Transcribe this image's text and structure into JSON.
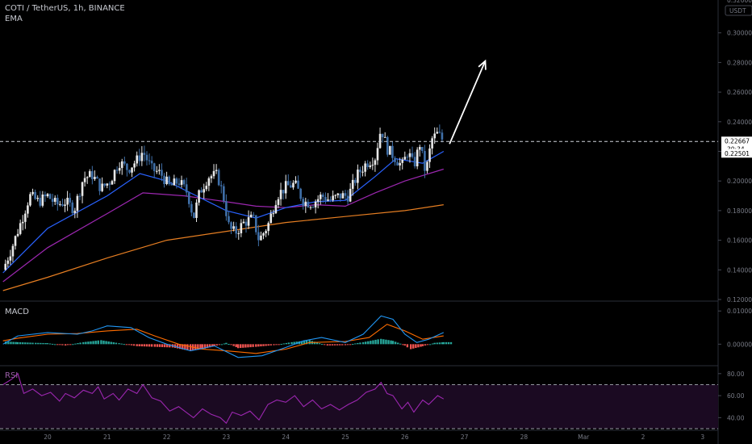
{
  "header": {
    "symbol_line": "COTI / TetherUS, 1h, BINANCE",
    "indicator": "EMA"
  },
  "chart_data": {
    "type": "candlestick",
    "title": "COTI / TetherUS, 1h, BINANCE",
    "currency_label": "USDT",
    "colors": {
      "up": "#e8e8e8",
      "down": "#3f6fa8",
      "ema_fast": "#2962ff",
      "ema_mid": "#9c27b0",
      "ema_slow": "#e67e22",
      "macd": "#2196f3",
      "signal": "#ff6d00",
      "hist_pos": "#26a69a",
      "hist_neg": "#ef5350",
      "rsi": "#9c27b0",
      "rsi_band": "#1b0a22",
      "arrow": "#ffffff"
    },
    "price_axis": {
      "min": 0.12,
      "max": 0.32,
      "ticks": [
        "0.30000",
        "0.28000",
        "0.26000",
        "0.24000",
        "0.22000",
        "0.20000",
        "0.18000",
        "0.16000",
        "0.14000",
        "0.12000"
      ],
      "top_partial_label": "0.32000"
    },
    "last_price": {
      "value": 0.22667,
      "label": "0.22667",
      "countdown": "30:34"
    },
    "reference_price": {
      "value": 0.22501,
      "label": "0.22501"
    },
    "x_axis": {
      "labels": [
        "20",
        "21",
        "22",
        "23",
        "24",
        "25",
        "26",
        "27",
        "28",
        "Mar",
        "2",
        "3"
      ],
      "positions_days": [
        0,
        1,
        2,
        3,
        4,
        5,
        6,
        7,
        8,
        9,
        10,
        11
      ]
    },
    "ohlc_close_path": [
      [
        -0.75,
        0.14
      ],
      [
        -0.6,
        0.155
      ],
      [
        -0.45,
        0.172
      ],
      [
        -0.3,
        0.19
      ],
      [
        -0.15,
        0.186
      ],
      [
        0.0,
        0.19
      ],
      [
        0.15,
        0.184
      ],
      [
        0.3,
        0.186
      ],
      [
        0.45,
        0.181
      ],
      [
        0.6,
        0.202
      ],
      [
        0.75,
        0.204
      ],
      [
        0.9,
        0.195
      ],
      [
        1.05,
        0.2
      ],
      [
        1.2,
        0.213
      ],
      [
        1.35,
        0.208
      ],
      [
        1.5,
        0.214
      ],
      [
        1.6,
        0.22
      ],
      [
        1.75,
        0.208
      ],
      [
        1.9,
        0.205
      ],
      [
        2.05,
        0.196
      ],
      [
        2.2,
        0.2
      ],
      [
        2.35,
        0.192
      ],
      [
        2.45,
        0.175
      ],
      [
        2.55,
        0.192
      ],
      [
        2.7,
        0.203
      ],
      [
        2.85,
        0.204
      ],
      [
        2.95,
        0.19
      ],
      [
        3.05,
        0.168
      ],
      [
        3.15,
        0.165
      ],
      [
        3.3,
        0.172
      ],
      [
        3.45,
        0.175
      ],
      [
        3.55,
        0.16
      ],
      [
        3.7,
        0.17
      ],
      [
        3.85,
        0.19
      ],
      [
        4.0,
        0.196
      ],
      [
        4.15,
        0.198
      ],
      [
        4.3,
        0.186
      ],
      [
        4.45,
        0.185
      ],
      [
        4.6,
        0.19
      ],
      [
        4.75,
        0.187
      ],
      [
        4.9,
        0.19
      ],
      [
        5.05,
        0.19
      ],
      [
        5.2,
        0.204
      ],
      [
        5.35,
        0.212
      ],
      [
        5.5,
        0.216
      ],
      [
        5.6,
        0.236
      ],
      [
        5.7,
        0.222
      ],
      [
        5.85,
        0.215
      ],
      [
        5.95,
        0.21
      ],
      [
        6.05,
        0.22
      ],
      [
        6.15,
        0.21
      ],
      [
        6.25,
        0.225
      ],
      [
        6.35,
        0.205
      ],
      [
        6.45,
        0.228
      ],
      [
        6.55,
        0.232
      ],
      [
        6.65,
        0.227
      ]
    ],
    "ema_fast": [
      [
        -0.75,
        0.138
      ],
      [
        0,
        0.168
      ],
      [
        1,
        0.19
      ],
      [
        1.55,
        0.205
      ],
      [
        2,
        0.2
      ],
      [
        2.5,
        0.19
      ],
      [
        3,
        0.18
      ],
      [
        3.5,
        0.175
      ],
      [
        4,
        0.182
      ],
      [
        4.5,
        0.186
      ],
      [
        5,
        0.187
      ],
      [
        5.5,
        0.203
      ],
      [
        5.85,
        0.215
      ],
      [
        6.3,
        0.212
      ],
      [
        6.65,
        0.22
      ]
    ],
    "ema_mid": [
      [
        -0.75,
        0.132
      ],
      [
        0,
        0.155
      ],
      [
        1,
        0.178
      ],
      [
        1.6,
        0.192
      ],
      [
        2.3,
        0.19
      ],
      [
        3,
        0.186
      ],
      [
        3.5,
        0.183
      ],
      [
        4,
        0.182
      ],
      [
        4.5,
        0.184
      ],
      [
        5,
        0.183
      ],
      [
        5.5,
        0.192
      ],
      [
        6,
        0.2
      ],
      [
        6.65,
        0.208
      ]
    ],
    "ema_slow": [
      [
        -0.75,
        0.126
      ],
      [
        0,
        0.135
      ],
      [
        1,
        0.148
      ],
      [
        2,
        0.16
      ],
      [
        3,
        0.166
      ],
      [
        4,
        0.172
      ],
      [
        5,
        0.176
      ],
      [
        6,
        0.18
      ],
      [
        6.65,
        0.184
      ]
    ],
    "trend_arrow": {
      "from": [
        6.75,
        0.225
      ],
      "to": [
        7.35,
        0.281
      ]
    },
    "macd_axis": {
      "min": -0.006,
      "max": 0.012,
      "ticks": [
        "0.01000",
        "0.00000"
      ],
      "label": "MACD"
    },
    "macd_line": [
      [
        -0.75,
        0.0
      ],
      [
        -0.5,
        0.0025
      ],
      [
        0,
        0.0035
      ],
      [
        0.5,
        0.003
      ],
      [
        0.75,
        0.004
      ],
      [
        1,
        0.0055
      ],
      [
        1.4,
        0.005
      ],
      [
        1.7,
        0.002
      ],
      [
        2,
        0.0
      ],
      [
        2.4,
        -0.002
      ],
      [
        2.8,
        -0.0005
      ],
      [
        3.2,
        -0.004
      ],
      [
        3.6,
        -0.0035
      ],
      [
        4,
        -0.001
      ],
      [
        4.3,
        0.001
      ],
      [
        4.6,
        0.002
      ],
      [
        5,
        0.0005
      ],
      [
        5.3,
        0.003
      ],
      [
        5.6,
        0.0085
      ],
      [
        5.8,
        0.0075
      ],
      [
        6.0,
        0.003
      ],
      [
        6.2,
        0.0005
      ],
      [
        6.4,
        0.0015
      ],
      [
        6.65,
        0.0035
      ]
    ],
    "signal_line": [
      [
        -0.75,
        0.001
      ],
      [
        -0.5,
        0.0018
      ],
      [
        0,
        0.003
      ],
      [
        0.5,
        0.0032
      ],
      [
        1,
        0.004
      ],
      [
        1.5,
        0.0045
      ],
      [
        1.8,
        0.0025
      ],
      [
        2.2,
        0.0
      ],
      [
        2.6,
        -0.0015
      ],
      [
        3,
        -0.002
      ],
      [
        3.5,
        -0.0028
      ],
      [
        4,
        -0.0015
      ],
      [
        4.4,
        0.0005
      ],
      [
        5,
        0.0008
      ],
      [
        5.4,
        0.002
      ],
      [
        5.7,
        0.006
      ],
      [
        6.0,
        0.004
      ],
      [
        6.3,
        0.0015
      ],
      [
        6.65,
        0.0025
      ]
    ],
    "macd_hist": [
      [
        -0.7,
        0.0008
      ],
      [
        -0.5,
        0.0006
      ],
      [
        -0.2,
        0.0004
      ],
      [
        0,
        0.0003
      ],
      [
        0.3,
        -0.0004
      ],
      [
        0.6,
        0.0006
      ],
      [
        0.9,
        0.0012
      ],
      [
        1.2,
        0.0003
      ],
      [
        1.5,
        -0.0006
      ],
      [
        1.8,
        -0.0008
      ],
      [
        2.1,
        -0.001
      ],
      [
        2.4,
        -0.002
      ],
      [
        2.6,
        -0.0015
      ],
      [
        2.8,
        -0.0006
      ],
      [
        3.0,
        0.0004
      ],
      [
        3.2,
        -0.0012
      ],
      [
        3.5,
        -0.0008
      ],
      [
        3.8,
        -0.0003
      ],
      [
        4.1,
        0.0006
      ],
      [
        4.4,
        0.0012
      ],
      [
        4.7,
        -0.0004
      ],
      [
        5.0,
        -0.0003
      ],
      [
        5.3,
        0.0006
      ],
      [
        5.6,
        0.0016
      ],
      [
        5.8,
        0.001
      ],
      [
        6.0,
        -0.0004
      ],
      [
        6.1,
        -0.0015
      ],
      [
        6.3,
        -0.0006
      ],
      [
        6.5,
        0.0004
      ],
      [
        6.65,
        0.0006
      ]
    ],
    "rsi_axis": {
      "min": 30,
      "max": 85,
      "ticks": [
        "80.00",
        "60.00",
        "40.00"
      ],
      "label": "RSI",
      "overbought": 70,
      "oversold": 30
    },
    "rsi_line": [
      [
        -0.75,
        70
      ],
      [
        -0.6,
        75
      ],
      [
        -0.5,
        80
      ],
      [
        -0.4,
        62
      ],
      [
        -0.25,
        66
      ],
      [
        -0.1,
        60
      ],
      [
        0.05,
        63
      ],
      [
        0.2,
        55
      ],
      [
        0.3,
        62
      ],
      [
        0.45,
        58
      ],
      [
        0.6,
        65
      ],
      [
        0.75,
        62
      ],
      [
        0.85,
        68
      ],
      [
        0.95,
        57
      ],
      [
        1.1,
        62
      ],
      [
        1.2,
        56
      ],
      [
        1.35,
        66
      ],
      [
        1.5,
        62
      ],
      [
        1.6,
        70
      ],
      [
        1.75,
        58
      ],
      [
        1.9,
        55
      ],
      [
        2.05,
        46
      ],
      [
        2.2,
        50
      ],
      [
        2.35,
        44
      ],
      [
        2.45,
        40
      ],
      [
        2.6,
        48
      ],
      [
        2.75,
        43
      ],
      [
        2.9,
        40
      ],
      [
        3.0,
        35
      ],
      [
        3.1,
        45
      ],
      [
        3.25,
        42
      ],
      [
        3.4,
        46
      ],
      [
        3.55,
        38
      ],
      [
        3.7,
        52
      ],
      [
        3.85,
        56
      ],
      [
        4.0,
        54
      ],
      [
        4.15,
        60
      ],
      [
        4.3,
        50
      ],
      [
        4.45,
        56
      ],
      [
        4.6,
        48
      ],
      [
        4.75,
        52
      ],
      [
        4.9,
        47
      ],
      [
        5.05,
        52
      ],
      [
        5.2,
        56
      ],
      [
        5.35,
        63
      ],
      [
        5.5,
        66
      ],
      [
        5.6,
        72
      ],
      [
        5.7,
        62
      ],
      [
        5.8,
        60
      ],
      [
        5.95,
        48
      ],
      [
        6.05,
        54
      ],
      [
        6.15,
        45
      ],
      [
        6.3,
        56
      ],
      [
        6.4,
        52
      ],
      [
        6.55,
        60
      ],
      [
        6.65,
        57
      ]
    ]
  }
}
